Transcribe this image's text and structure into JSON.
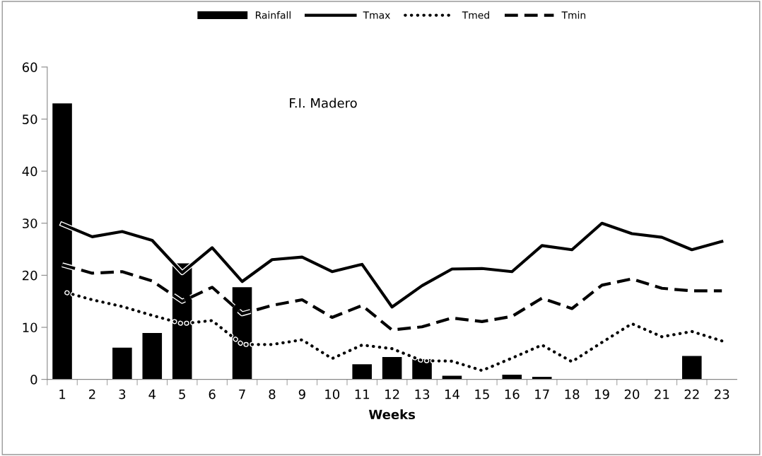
{
  "chart_data": {
    "type": "bar",
    "xlabel": "Weeks",
    "annotations": [
      "F.I. Madero"
    ],
    "categories": [
      "1",
      "2",
      "3",
      "4",
      "5",
      "6",
      "7",
      "8",
      "9",
      "10",
      "11",
      "12",
      "13",
      "14",
      "15",
      "16",
      "17",
      "18",
      "19",
      "20",
      "21",
      "22",
      "23"
    ],
    "series": [
      {
        "name": "Rainfall",
        "color": "#000000",
        "values": [
          53,
          0,
          6.1,
          8.9,
          22.3,
          0,
          17.7,
          0,
          0,
          0,
          2.9,
          4.3,
          3.9,
          0.7,
          0,
          0.9,
          0.5,
          0,
          0,
          0,
          0,
          4.5,
          0
        ]
      },
      {
        "name": "Tmax",
        "type": "line",
        "line_style": "solid",
        "color": "#000000",
        "values": [
          29.8,
          27.4,
          28.4,
          26.7,
          20.5,
          25.3,
          18.8,
          23,
          23.5,
          20.7,
          22.1,
          13.9,
          18,
          21.2,
          21.3,
          20.7,
          25.7,
          24.9,
          30,
          28,
          27.3,
          24.9,
          26.5
        ]
      },
      {
        "name": "Tmed",
        "type": "line",
        "line_style": "dotted",
        "color": "#000000",
        "values": [
          16.9,
          15.3,
          14,
          12.3,
          10.7,
          11.3,
          6.7,
          6.7,
          7.6,
          4,
          6.6,
          5.9,
          3.6,
          3.5,
          1.7,
          4.1,
          6.6,
          3.4,
          7.1,
          10.7,
          8.2,
          9.2,
          7.4
        ]
      },
      {
        "name": "Tmin",
        "type": "line",
        "line_style": "dashed",
        "color": "#000000",
        "values": [
          22,
          20.4,
          20.7,
          18.9,
          15,
          17.7,
          12.6,
          14.2,
          15.3,
          11.9,
          14.2,
          9.5,
          10.1,
          11.8,
          11.1,
          12.1,
          15.6,
          13.6,
          18.1,
          19.3,
          17.5,
          17,
          17
        ]
      }
    ],
    "ylim": [
      0,
      60
    ],
    "yticks": [
      0,
      10,
      20,
      30,
      40,
      50,
      60
    ],
    "legend": "top",
    "grid": false
  }
}
